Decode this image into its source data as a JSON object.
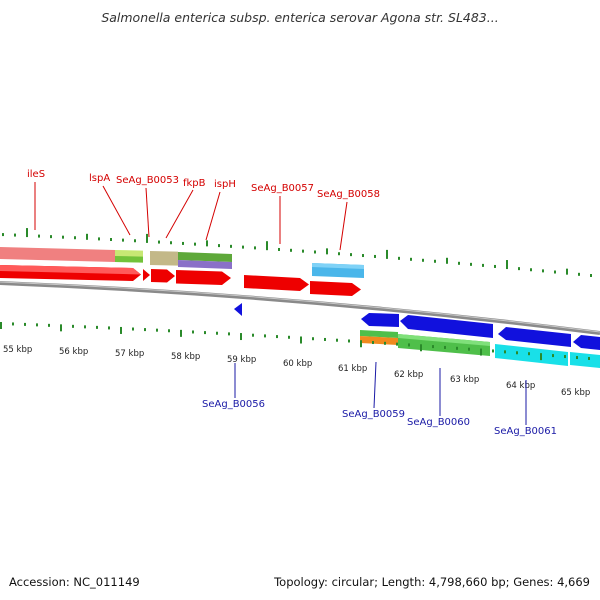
{
  "title": "Salmonella enterica subsp. enterica serovar Agona str. SL483...",
  "footer": {
    "accession": "Accession: NC_011149",
    "summary": "Topology: circular; Length: 4,798,660 bp; Genes: 4,669"
  },
  "colors": {
    "forward_cds": "#ee0000",
    "reverse_cds": "#1111dd",
    "backbone": "#8a8a8a",
    "tick": "#2a8a2a",
    "forward_label": "#d40000",
    "reverse_label": "#1a1aa6"
  },
  "ticks": [
    {
      "label": "55 kbp"
    },
    {
      "label": "56 kbp"
    },
    {
      "label": "57 kbp"
    },
    {
      "label": "58 kbp"
    },
    {
      "label": "59 kbp"
    },
    {
      "label": "60 kbp"
    },
    {
      "label": "61 kbp"
    },
    {
      "label": "62 kbp"
    },
    {
      "label": "63 kbp"
    },
    {
      "label": "64 kbp"
    },
    {
      "label": "65 kbp"
    }
  ],
  "forward_genes": [
    {
      "label": "ileS"
    },
    {
      "label": "lspA"
    },
    {
      "label": "SeAg_B0053"
    },
    {
      "label": "fkpB"
    },
    {
      "label": "ispH"
    },
    {
      "label": "SeAg_B0057"
    },
    {
      "label": "SeAg_B0058"
    }
  ],
  "reverse_genes": [
    {
      "label": "SeAg_B0056"
    },
    {
      "label": "SeAg_B0059"
    },
    {
      "label": "SeAg_B0060"
    },
    {
      "label": "SeAg_B0061"
    }
  ]
}
